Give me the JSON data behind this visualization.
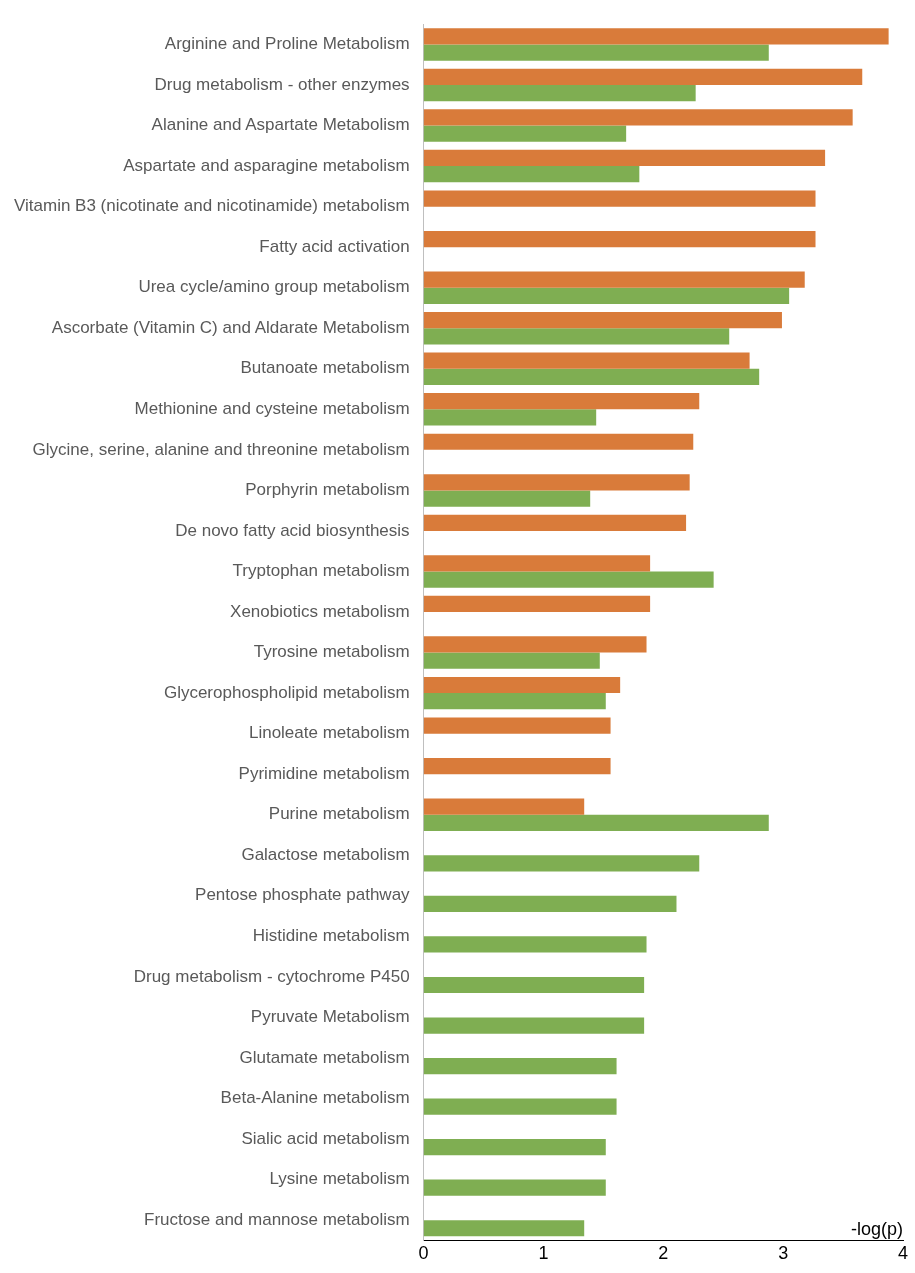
{
  "chart_data": {
    "type": "bar",
    "orientation": "horizontal",
    "xlabel": "-log(p)",
    "categories": [
      "Arginine and Proline Metabolism",
      "Drug metabolism - other enzymes",
      "Alanine and Aspartate Metabolism",
      "Aspartate and asparagine metabolism",
      "Vitamin B3 (nicotinate and nicotinamide) metabolism",
      "Fatty acid activation",
      "Urea cycle/amino group metabolism",
      "Ascorbate (Vitamin C) and Aldarate Metabolism",
      "Butanoate metabolism",
      "Methionine and cysteine metabolism",
      "Glycine, serine, alanine and threonine metabolism",
      "Porphyrin metabolism",
      "De novo fatty acid biosynthesis",
      "Tryptophan metabolism",
      "Xenobiotics metabolism",
      "Tyrosine metabolism",
      "Glycerophospholipid metabolism",
      "Linoleate metabolism",
      "Pyrimidine metabolism",
      "Purine metabolism",
      "Galactose metabolism",
      "Pentose phosphate pathway",
      "Histidine metabolism",
      "Drug metabolism - cytochrome P450",
      "Pyruvate Metabolism",
      "Glutamate metabolism",
      "Beta-Alanine metabolism",
      "Sialic acid metabolism",
      "Lysine metabolism",
      "Fructose and mannose metabolism"
    ],
    "series": [
      {
        "color": "#d97b3a",
        "values": [
          3.88,
          3.66,
          3.58,
          3.35,
          3.27,
          3.27,
          3.18,
          2.99,
          2.72,
          2.3,
          2.25,
          2.22,
          2.19,
          1.89,
          1.89,
          1.86,
          1.64,
          1.56,
          1.56,
          1.34,
          null,
          null,
          null,
          null,
          null,
          null,
          null,
          null,
          null,
          null
        ]
      },
      {
        "color": "#7fae52",
        "values": [
          2.88,
          2.27,
          1.69,
          1.8,
          null,
          null,
          3.05,
          2.55,
          2.8,
          1.44,
          null,
          1.39,
          null,
          2.42,
          null,
          1.47,
          1.52,
          null,
          null,
          2.88,
          2.3,
          2.11,
          1.86,
          1.84,
          1.84,
          1.61,
          1.61,
          1.52,
          1.52,
          1.34
        ]
      }
    ],
    "xlim": [
      0,
      4
    ],
    "xticks": [
      0,
      1,
      2,
      3,
      4
    ],
    "grid": false,
    "legend": false
  }
}
